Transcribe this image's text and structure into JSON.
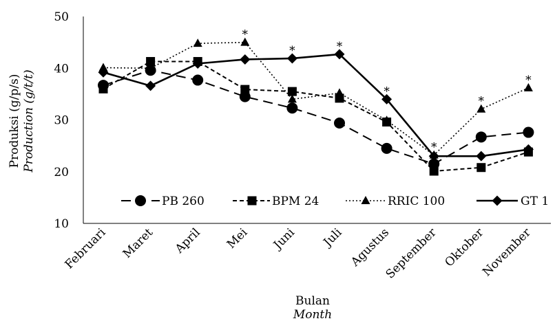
{
  "chart_data": {
    "type": "line",
    "title": "",
    "xlabel": "Bulan",
    "xlabel_en": "Month",
    "ylabel": "Produksi (g/p/s)",
    "ylabel_en": "Production (g/t/t)",
    "ylim": [
      10,
      50
    ],
    "yticks": [
      "10",
      "20",
      "30",
      "40",
      "50"
    ],
    "grid": false,
    "legend_position": "inside-bottom",
    "categories": [
      "Februari",
      "Maret",
      "April",
      "Mei",
      "Juni",
      "Juli",
      "Agustus",
      "September",
      "Oktober",
      "November"
    ],
    "series": [
      {
        "name": "PB 260",
        "marker": "circle",
        "line_style": "long-dash",
        "color": "#000000",
        "values": [
          36.7,
          39.6,
          37.7,
          34.5,
          32.3,
          29.4,
          24.5,
          21.5,
          26.7,
          27.6
        ]
      },
      {
        "name": "BPM 24",
        "marker": "square",
        "line_style": "short-dash",
        "color": "#000000",
        "values": [
          36.0,
          41.3,
          41.3,
          35.9,
          35.5,
          34.2,
          29.6,
          20.1,
          20.8,
          23.8
        ]
      },
      {
        "name": "RRIC 100",
        "marker": "triangle",
        "line_style": "dotted",
        "color": "#000000",
        "values": [
          40.1,
          40.0,
          44.8,
          45.0,
          34.0,
          35.2,
          29.9,
          23.2,
          32.1,
          36.2
        ]
      },
      {
        "name": "GT 1",
        "marker": "diamond",
        "line_style": "solid",
        "color": "#000000",
        "values": [
          39.2,
          36.6,
          40.9,
          41.7,
          41.9,
          42.7,
          34.0,
          23.0,
          23.0,
          24.3
        ]
      }
    ],
    "annotations": [
      {
        "text": "*",
        "category": "Mei",
        "value": 45.0
      },
      {
        "text": "*",
        "category": "Juni",
        "value": 41.9
      },
      {
        "text": "*",
        "category": "Juli",
        "value": 42.7
      },
      {
        "text": "*",
        "category": "Agustus",
        "value": 34.0
      },
      {
        "text": "*",
        "category": "September",
        "value": 23.2
      },
      {
        "text": "*",
        "category": "Oktober",
        "value": 32.1
      },
      {
        "text": "*",
        "category": "November",
        "value": 36.2
      }
    ]
  }
}
